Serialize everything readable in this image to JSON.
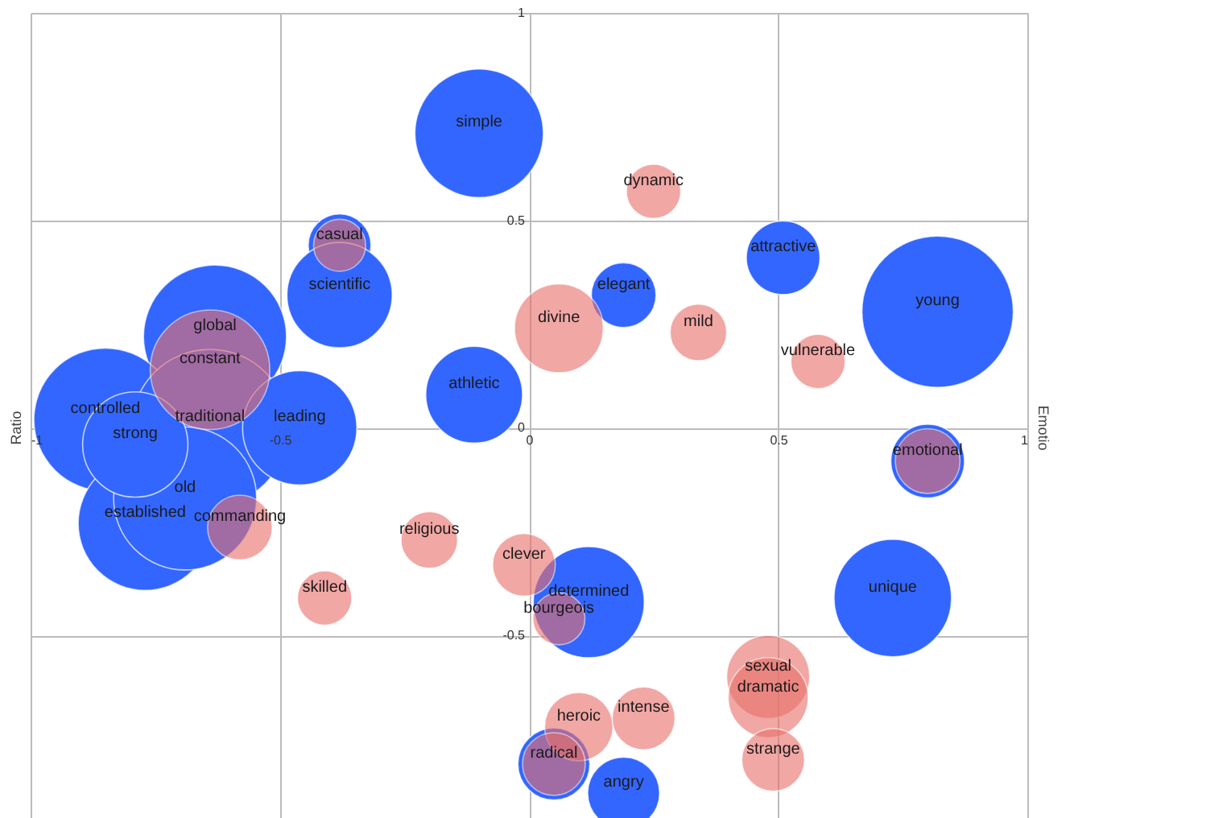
{
  "chart_data": {
    "type": "bubble",
    "annotations": [
      "Ratio",
      "Emotio"
    ],
    "xlim": [
      -1,
      1
    ],
    "xticks": [
      -1,
      -0.5,
      0,
      0.5,
      1
    ],
    "ylim": [
      -0.94,
      1
    ],
    "yticks": [
      -0.5,
      0,
      0.5,
      1
    ],
    "grid": true,
    "legend": false,
    "series": [
      {
        "color": "#3366ff",
        "x": [
          -0.1,
          -0.38,
          -0.38,
          -0.63,
          -0.85,
          -0.64,
          -0.46,
          -0.77,
          -0.69,
          -0.79,
          -0.11,
          0.19,
          0.51,
          0.82,
          0.8,
          0.73,
          0.12,
          0.05,
          0.19
        ],
        "values": [
          0.71,
          0.44,
          0.32,
          0.22,
          0.02,
          0.0,
          0.0,
          -0.23,
          -0.17,
          -0.04,
          0.08,
          0.32,
          0.41,
          0.28,
          -0.08,
          -0.41,
          -0.42,
          -0.81,
          -0.88
        ],
        "sizes": [
          0.67,
          0.16,
          0.45,
          0.83,
          0.83,
          1,
          0.53,
          0.73,
          0.83,
          0.45,
          0.38,
          0.17,
          0.22,
          0.93,
          0.22,
          0.56,
          0.5,
          0.21,
          0.21
        ],
        "value_labels": [
          "simple",
          null,
          "scientific",
          "global",
          "controlled",
          "traditional",
          "leading",
          "established",
          "old",
          "strong",
          "athletic",
          "elegant",
          "attractive",
          "young",
          null,
          "unique",
          "determined",
          null,
          "angry"
        ]
      },
      {
        "color": "#e8706a",
        "x": [
          -0.64,
          -0.38,
          0.25,
          0.06,
          0.34,
          0.58,
          -0.2,
          -0.41,
          -0.01,
          0.06,
          0.1,
          0.23,
          0.48,
          0.48,
          0.49,
          -0.58,
          0.8,
          0.05
        ],
        "values": [
          0.14,
          0.44,
          0.57,
          0.24,
          0.23,
          0.16,
          -0.27,
          -0.41,
          -0.33,
          -0.46,
          -0.72,
          -0.7,
          -0.6,
          -0.65,
          -0.8,
          -0.24,
          -0.08,
          -0.81
        ],
        "sizes": [
          0.58,
          0.11,
          0.12,
          0.32,
          0.13,
          0.12,
          0.13,
          0.12,
          0.16,
          0.11,
          0.19,
          0.16,
          0.28,
          0.26,
          0.16,
          0.17,
          0.17,
          0.16
        ],
        "value_labels": [
          "constant",
          "casual",
          "dynamic",
          "divine",
          "mild",
          "vulnerable",
          "religious",
          "skilled",
          "clever",
          "bourgeois",
          "heroic",
          "intense",
          "sexual",
          "dramatic",
          "strange",
          "commanding",
          "emotional",
          "radical"
        ]
      }
    ]
  }
}
